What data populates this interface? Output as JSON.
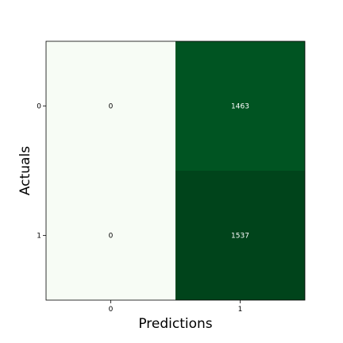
{
  "chart_data": {
    "type": "heatmap",
    "title": "",
    "xlabel": "Predictions",
    "ylabel": "Actuals",
    "x_categories": [
      "0",
      "1"
    ],
    "y_categories": [
      "0",
      "1"
    ],
    "matrix": [
      [
        0,
        1463
      ],
      [
        0,
        1537
      ]
    ],
    "colormap": "Greens",
    "vmin": 0,
    "vmax": 1537,
    "colorbar": false,
    "grid": false
  }
}
